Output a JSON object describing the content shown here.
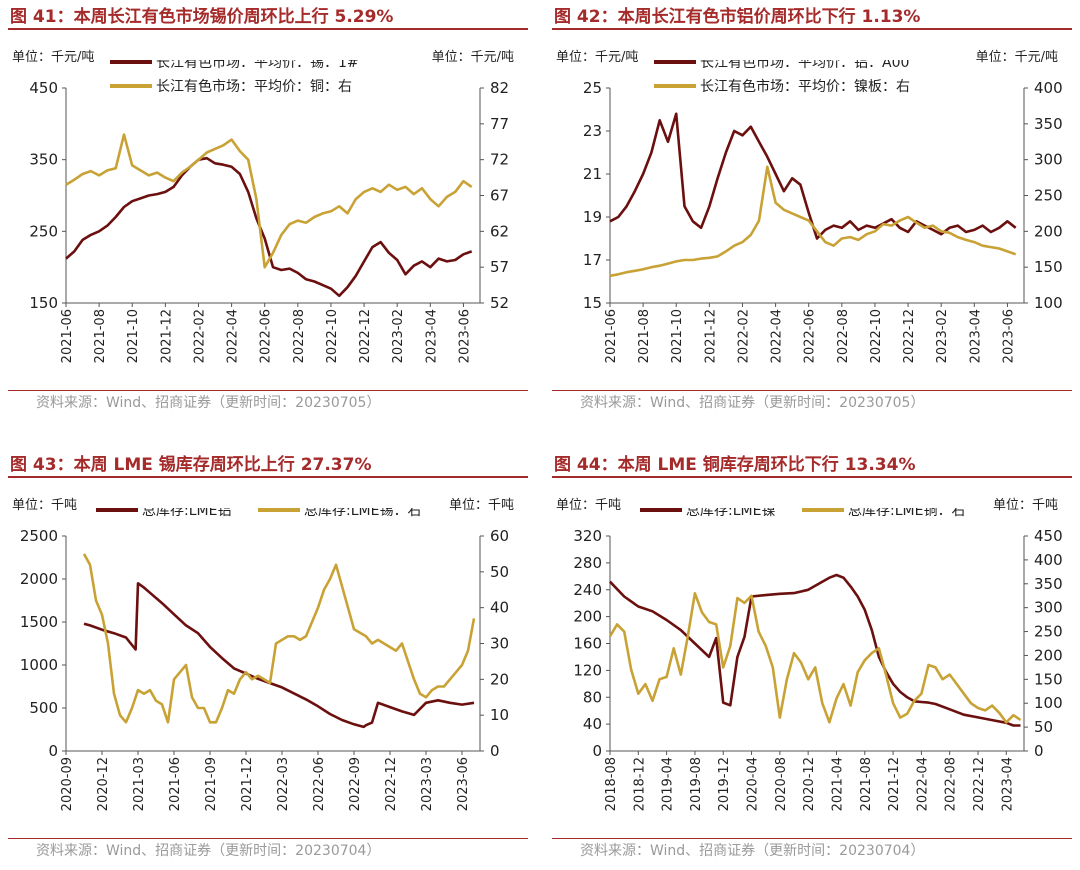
{
  "colors": {
    "dark": "#6b0f0f",
    "gold": "#c9a236",
    "title": "#a52a2a",
    "source": "#9a9a9a"
  },
  "chart_data": [
    {
      "type": "line",
      "title": "图 41：本周长江有色市场锡价周环比上行 5.29%",
      "unit_left": "单位：千元/吨",
      "unit_right": "单位：千元/吨",
      "source": "资料来源：Wind、招商证券（更新时间：20230705）",
      "ylim": [
        150,
        450
      ],
      "yticks": [
        150,
        250,
        350,
        450
      ],
      "ylim_right": [
        52,
        82
      ],
      "yticks_right": [
        52,
        57,
        62,
        67,
        72,
        77,
        82
      ],
      "xrange": [
        0,
        25
      ],
      "x_tick_labels": [
        "2021-06",
        "2021-08",
        "2021-10",
        "2021-12",
        "2022-02",
        "2022-04",
        "2022-06",
        "2022-08",
        "2022-10",
        "2022-12",
        "2023-02",
        "2023-04",
        "2023-06"
      ],
      "x_tick_positions": [
        0,
        2,
        4,
        6,
        8,
        10,
        12,
        14,
        16,
        18,
        20,
        22,
        24
      ],
      "series": [
        {
          "name": "长江有色市场：平均价：锡：1#",
          "axis": "left",
          "color": "dark",
          "x": [
            0,
            0.5,
            1,
            1.5,
            2,
            2.5,
            3,
            3.5,
            4,
            4.5,
            5,
            5.5,
            6,
            6.5,
            7,
            7.5,
            8,
            8.5,
            9,
            9.5,
            10,
            10.5,
            11,
            11.5,
            12,
            12.5,
            13,
            13.5,
            14,
            14.5,
            15,
            15.5,
            16,
            16.5,
            17,
            17.5,
            18,
            18.5,
            19,
            19.5,
            20,
            20.5,
            21,
            21.5,
            22,
            22.5,
            23,
            23.5,
            24,
            24.5
          ],
          "values": [
            212,
            222,
            238,
            245,
            250,
            258,
            270,
            284,
            292,
            296,
            300,
            302,
            305,
            312,
            328,
            340,
            350,
            352,
            345,
            343,
            340,
            330,
            305,
            268,
            240,
            200,
            196,
            198,
            192,
            183,
            180,
            175,
            170,
            160,
            172,
            188,
            208,
            228,
            235,
            220,
            210,
            190,
            202,
            208,
            200,
            212,
            208,
            210,
            218,
            222
          ]
        },
        {
          "name": "长江有色市场：平均价：铜：右",
          "axis": "right",
          "color": "gold",
          "x": [
            0,
            0.5,
            1,
            1.5,
            2,
            2.5,
            3,
            3.5,
            4,
            4.5,
            5,
            5.5,
            6,
            6.5,
            7,
            7.5,
            8,
            8.5,
            9,
            9.5,
            10,
            10.5,
            11,
            11.5,
            12,
            12.5,
            13,
            13.5,
            14,
            14.5,
            15,
            15.5,
            16,
            16.5,
            17,
            17.5,
            18,
            18.5,
            19,
            19.5,
            20,
            20.5,
            21,
            21.5,
            22,
            22.5,
            23,
            23.5,
            24,
            24.5
          ],
          "values": [
            68.5,
            69.2,
            70.0,
            70.4,
            69.8,
            70.5,
            70.8,
            75.5,
            71.2,
            70.5,
            69.8,
            70.2,
            69.5,
            69.0,
            70.2,
            71.0,
            72.0,
            73.0,
            73.5,
            74.0,
            74.8,
            73.2,
            72.0,
            66.5,
            57.0,
            59.0,
            61.5,
            63.0,
            63.5,
            63.2,
            64.0,
            64.5,
            64.8,
            65.5,
            64.5,
            66.5,
            67.5,
            68.0,
            67.5,
            68.5,
            67.8,
            68.2,
            67.2,
            68.0,
            66.5,
            65.5,
            66.8,
            67.5,
            69.0,
            68.2
          ]
        }
      ]
    },
    {
      "type": "line",
      "title": "图 42：本周长江有色市铝价周环比下行 1.13%",
      "unit_left": "单位：千元/吨",
      "unit_right": "单位：千元/吨",
      "source": "资料来源：Wind、招商证券（更新时间：20230705）",
      "ylim": [
        15,
        25
      ],
      "yticks": [
        15,
        17,
        19,
        21,
        23,
        25
      ],
      "ylim_right": [
        100,
        400
      ],
      "yticks_right": [
        100,
        150,
        200,
        250,
        300,
        350,
        400
      ],
      "xrange": [
        0,
        25
      ],
      "x_tick_labels": [
        "2021-06",
        "2021-08",
        "2021-10",
        "2021-12",
        "2022-02",
        "2022-04",
        "2022-06",
        "2022-08",
        "2022-10",
        "2022-12",
        "2023-02",
        "2023-04",
        "2023-06"
      ],
      "x_tick_positions": [
        0,
        2,
        4,
        6,
        8,
        10,
        12,
        14,
        16,
        18,
        20,
        22,
        24
      ],
      "series": [
        {
          "name": "长江有色市场：平均价：铝：A00",
          "axis": "left",
          "color": "dark",
          "x": [
            0,
            0.5,
            1,
            1.5,
            2,
            2.5,
            3,
            3.5,
            4,
            4.5,
            5,
            5.5,
            6,
            6.5,
            7,
            7.5,
            8,
            8.5,
            9,
            9.5,
            10,
            10.5,
            11,
            11.5,
            12,
            12.5,
            13,
            13.5,
            14,
            14.5,
            15,
            15.5,
            16,
            16.5,
            17,
            17.5,
            18,
            18.5,
            19,
            19.5,
            20,
            20.5,
            21,
            21.5,
            22,
            22.5,
            23,
            23.5,
            24,
            24.5
          ],
          "values": [
            18.8,
            19.0,
            19.5,
            20.2,
            21.0,
            22.0,
            23.5,
            22.5,
            23.8,
            19.5,
            18.8,
            18.5,
            19.5,
            20.8,
            22.0,
            23.0,
            22.8,
            23.2,
            22.5,
            21.8,
            21.0,
            20.2,
            20.8,
            20.5,
            19.2,
            18.0,
            18.4,
            18.6,
            18.5,
            18.8,
            18.4,
            18.6,
            18.5,
            18.7,
            18.9,
            18.5,
            18.3,
            18.8,
            18.6,
            18.4,
            18.2,
            18.5,
            18.6,
            18.3,
            18.4,
            18.6,
            18.3,
            18.5,
            18.8,
            18.5
          ]
        },
        {
          "name": "长江有色市场：平均价：镍板：右",
          "axis": "right",
          "color": "gold",
          "x": [
            0,
            0.5,
            1,
            1.5,
            2,
            2.5,
            3,
            3.5,
            4,
            4.5,
            5,
            5.5,
            6,
            6.5,
            7,
            7.5,
            8,
            8.5,
            9,
            9.5,
            10,
            10.5,
            11,
            11.5,
            12,
            12.5,
            13,
            13.5,
            14,
            14.5,
            15,
            15.5,
            16,
            16.5,
            17,
            17.5,
            18,
            18.5,
            19,
            19.5,
            20,
            20.5,
            21,
            21.5,
            22,
            22.5,
            23,
            23.5,
            24,
            24.5
          ],
          "values": [
            138,
            140,
            143,
            145,
            147,
            150,
            152,
            155,
            158,
            160,
            160,
            162,
            163,
            165,
            172,
            180,
            185,
            195,
            215,
            290,
            240,
            230,
            225,
            220,
            215,
            200,
            185,
            180,
            190,
            192,
            188,
            196,
            200,
            210,
            208,
            215,
            220,
            212,
            205,
            208,
            200,
            198,
            192,
            188,
            185,
            180,
            178,
            176,
            172,
            168
          ]
        }
      ]
    },
    {
      "type": "line",
      "title": "图 43：本周 LME 锡库存周环比上行 27.37%",
      "unit_left": "单位：千吨",
      "unit_right": "单位：千吨",
      "source": "资料来源：Wind、招商证券（更新时间：20230704）",
      "ylim": [
        0,
        2500
      ],
      "yticks": [
        0,
        500,
        1000,
        1500,
        2000,
        2500
      ],
      "ylim_right": [
        0,
        60
      ],
      "yticks_right": [
        0,
        10,
        20,
        30,
        40,
        50,
        60
      ],
      "xrange": [
        0,
        34.5
      ],
      "x_tick_labels": [
        "2020-09",
        "2020-12",
        "2021-03",
        "2021-06",
        "2021-09",
        "2021-12",
        "2022-03",
        "2022-06",
        "2022-09",
        "2022-12",
        "2023-03",
        "2023-06"
      ],
      "x_tick_positions": [
        0,
        3,
        6,
        9,
        12,
        15,
        18,
        21,
        24,
        27,
        30,
        33
      ],
      "series": [
        {
          "name": "总库存:LME铝",
          "axis": "left",
          "color": "dark",
          "x": [
            1.5,
            2,
            3,
            4,
            5,
            5.8,
            6,
            6.5,
            7,
            8,
            9,
            10,
            11,
            12,
            13,
            14,
            15,
            16,
            17,
            18,
            19,
            20,
            21,
            22,
            23,
            24,
            24.8,
            25,
            25.5,
            26,
            27,
            28,
            29,
            30,
            31,
            32,
            33,
            34
          ],
          "values": [
            1480,
            1460,
            1410,
            1370,
            1320,
            1180,
            1950,
            1900,
            1840,
            1720,
            1590,
            1460,
            1370,
            1210,
            1080,
            960,
            900,
            840,
            790,
            740,
            670,
            600,
            520,
            430,
            360,
            310,
            280,
            300,
            330,
            560,
            510,
            460,
            420,
            560,
            590,
            560,
            540,
            560
          ]
        },
        {
          "name": "总库存:LME锡：右",
          "axis": "right",
          "color": "gold",
          "x": [
            1.5,
            2,
            2.5,
            3,
            3.5,
            4,
            4.5,
            5,
            5.5,
            6,
            6.5,
            7,
            7.5,
            8,
            8.5,
            9,
            9.5,
            10,
            10.5,
            11,
            11.5,
            12,
            12.5,
            13,
            13.5,
            14,
            14.5,
            15,
            15.5,
            16,
            16.5,
            17,
            17.5,
            18,
            18.5,
            19,
            19.5,
            20,
            20.5,
            21,
            21.5,
            22,
            22.5,
            23,
            23.5,
            24,
            24.5,
            25,
            25.5,
            26,
            26.5,
            27,
            27.5,
            28,
            28.5,
            29,
            29.5,
            30,
            30.5,
            31,
            31.5,
            32,
            32.5,
            33,
            33.5,
            34
          ],
          "values": [
            55,
            52,
            42,
            38,
            30,
            16,
            10,
            8,
            12,
            17,
            16,
            17,
            14,
            13,
            8,
            20,
            22,
            24,
            15,
            12,
            12,
            8,
            8,
            12,
            17,
            16,
            20,
            22,
            20,
            21,
            20,
            19,
            30,
            31,
            32,
            32,
            31,
            32,
            36,
            40,
            45,
            48,
            52,
            46,
            40,
            34,
            33,
            32,
            30,
            31,
            30,
            29,
            28,
            30,
            25,
            20,
            16,
            15,
            17,
            18,
            18,
            20,
            22,
            24,
            28,
            37
          ]
        }
      ]
    },
    {
      "type": "line",
      "title": "图 44：本周 LME 铜库存周环比下行 13.34%",
      "unit_left": "单位：千吨",
      "unit_right": "单位：千吨",
      "source": "资料来源：Wind、招商证券（更新时间：20230704）",
      "ylim": [
        0,
        320
      ],
      "yticks": [
        0,
        40,
        80,
        120,
        160,
        200,
        240,
        280,
        320
      ],
      "ylim_right": [
        0,
        450
      ],
      "yticks_right": [
        0,
        50,
        100,
        150,
        200,
        250,
        300,
        350,
        400,
        450
      ],
      "xrange": [
        0,
        58.5
      ],
      "x_tick_labels": [
        "2018-08",
        "2018-12",
        "2019-04",
        "2019-08",
        "2019-12",
        "2020-04",
        "2020-08",
        "2020-12",
        "2021-04",
        "2021-08",
        "2021-12",
        "2022-04",
        "2022-08",
        "2022-12",
        "2023-04"
      ],
      "x_tick_positions": [
        0,
        4,
        8,
        12,
        16,
        20,
        24,
        28,
        32,
        36,
        40,
        44,
        48,
        52,
        56
      ],
      "series": [
        {
          "name": "总库存:LME镍",
          "axis": "left",
          "color": "dark",
          "x": [
            0,
            2,
            4,
            6,
            8,
            10,
            12,
            14,
            15,
            16,
            17,
            18,
            19,
            20,
            22,
            24,
            26,
            28,
            30,
            31,
            32,
            33,
            34,
            35,
            36,
            37,
            38,
            39,
            40,
            41,
            42,
            43,
            44,
            45,
            46,
            48,
            50,
            52,
            54,
            56,
            57,
            58
          ],
          "values": [
            252,
            230,
            215,
            208,
            195,
            180,
            160,
            140,
            168,
            72,
            68,
            140,
            170,
            230,
            232,
            234,
            235,
            240,
            252,
            258,
            262,
            258,
            245,
            230,
            210,
            180,
            140,
            118,
            100,
            88,
            80,
            74,
            73,
            72,
            70,
            62,
            54,
            50,
            46,
            42,
            38,
            38
          ]
        },
        {
          "name": "总库存:LME铜：右",
          "axis": "right",
          "color": "gold",
          "x": [
            0,
            1,
            2,
            3,
            4,
            5,
            6,
            7,
            8,
            9,
            10,
            11,
            12,
            13,
            14,
            15,
            16,
            17,
            18,
            19,
            20,
            21,
            22,
            23,
            24,
            25,
            26,
            27,
            28,
            29,
            30,
            31,
            32,
            33,
            34,
            35,
            36,
            37,
            38,
            39,
            40,
            41,
            42,
            43,
            44,
            45,
            46,
            47,
            48,
            49,
            50,
            51,
            52,
            53,
            54,
            55,
            56,
            57,
            58
          ],
          "values": [
            240,
            265,
            250,
            170,
            120,
            140,
            105,
            150,
            155,
            215,
            160,
            240,
            330,
            290,
            270,
            265,
            175,
            220,
            320,
            310,
            325,
            250,
            220,
            175,
            70,
            150,
            205,
            185,
            150,
            175,
            100,
            60,
            110,
            140,
            95,
            165,
            190,
            205,
            215,
            160,
            100,
            70,
            78,
            105,
            120,
            180,
            175,
            150,
            160,
            140,
            120,
            100,
            90,
            85,
            95,
            80,
            60,
            75,
            65
          ]
        }
      ]
    }
  ]
}
